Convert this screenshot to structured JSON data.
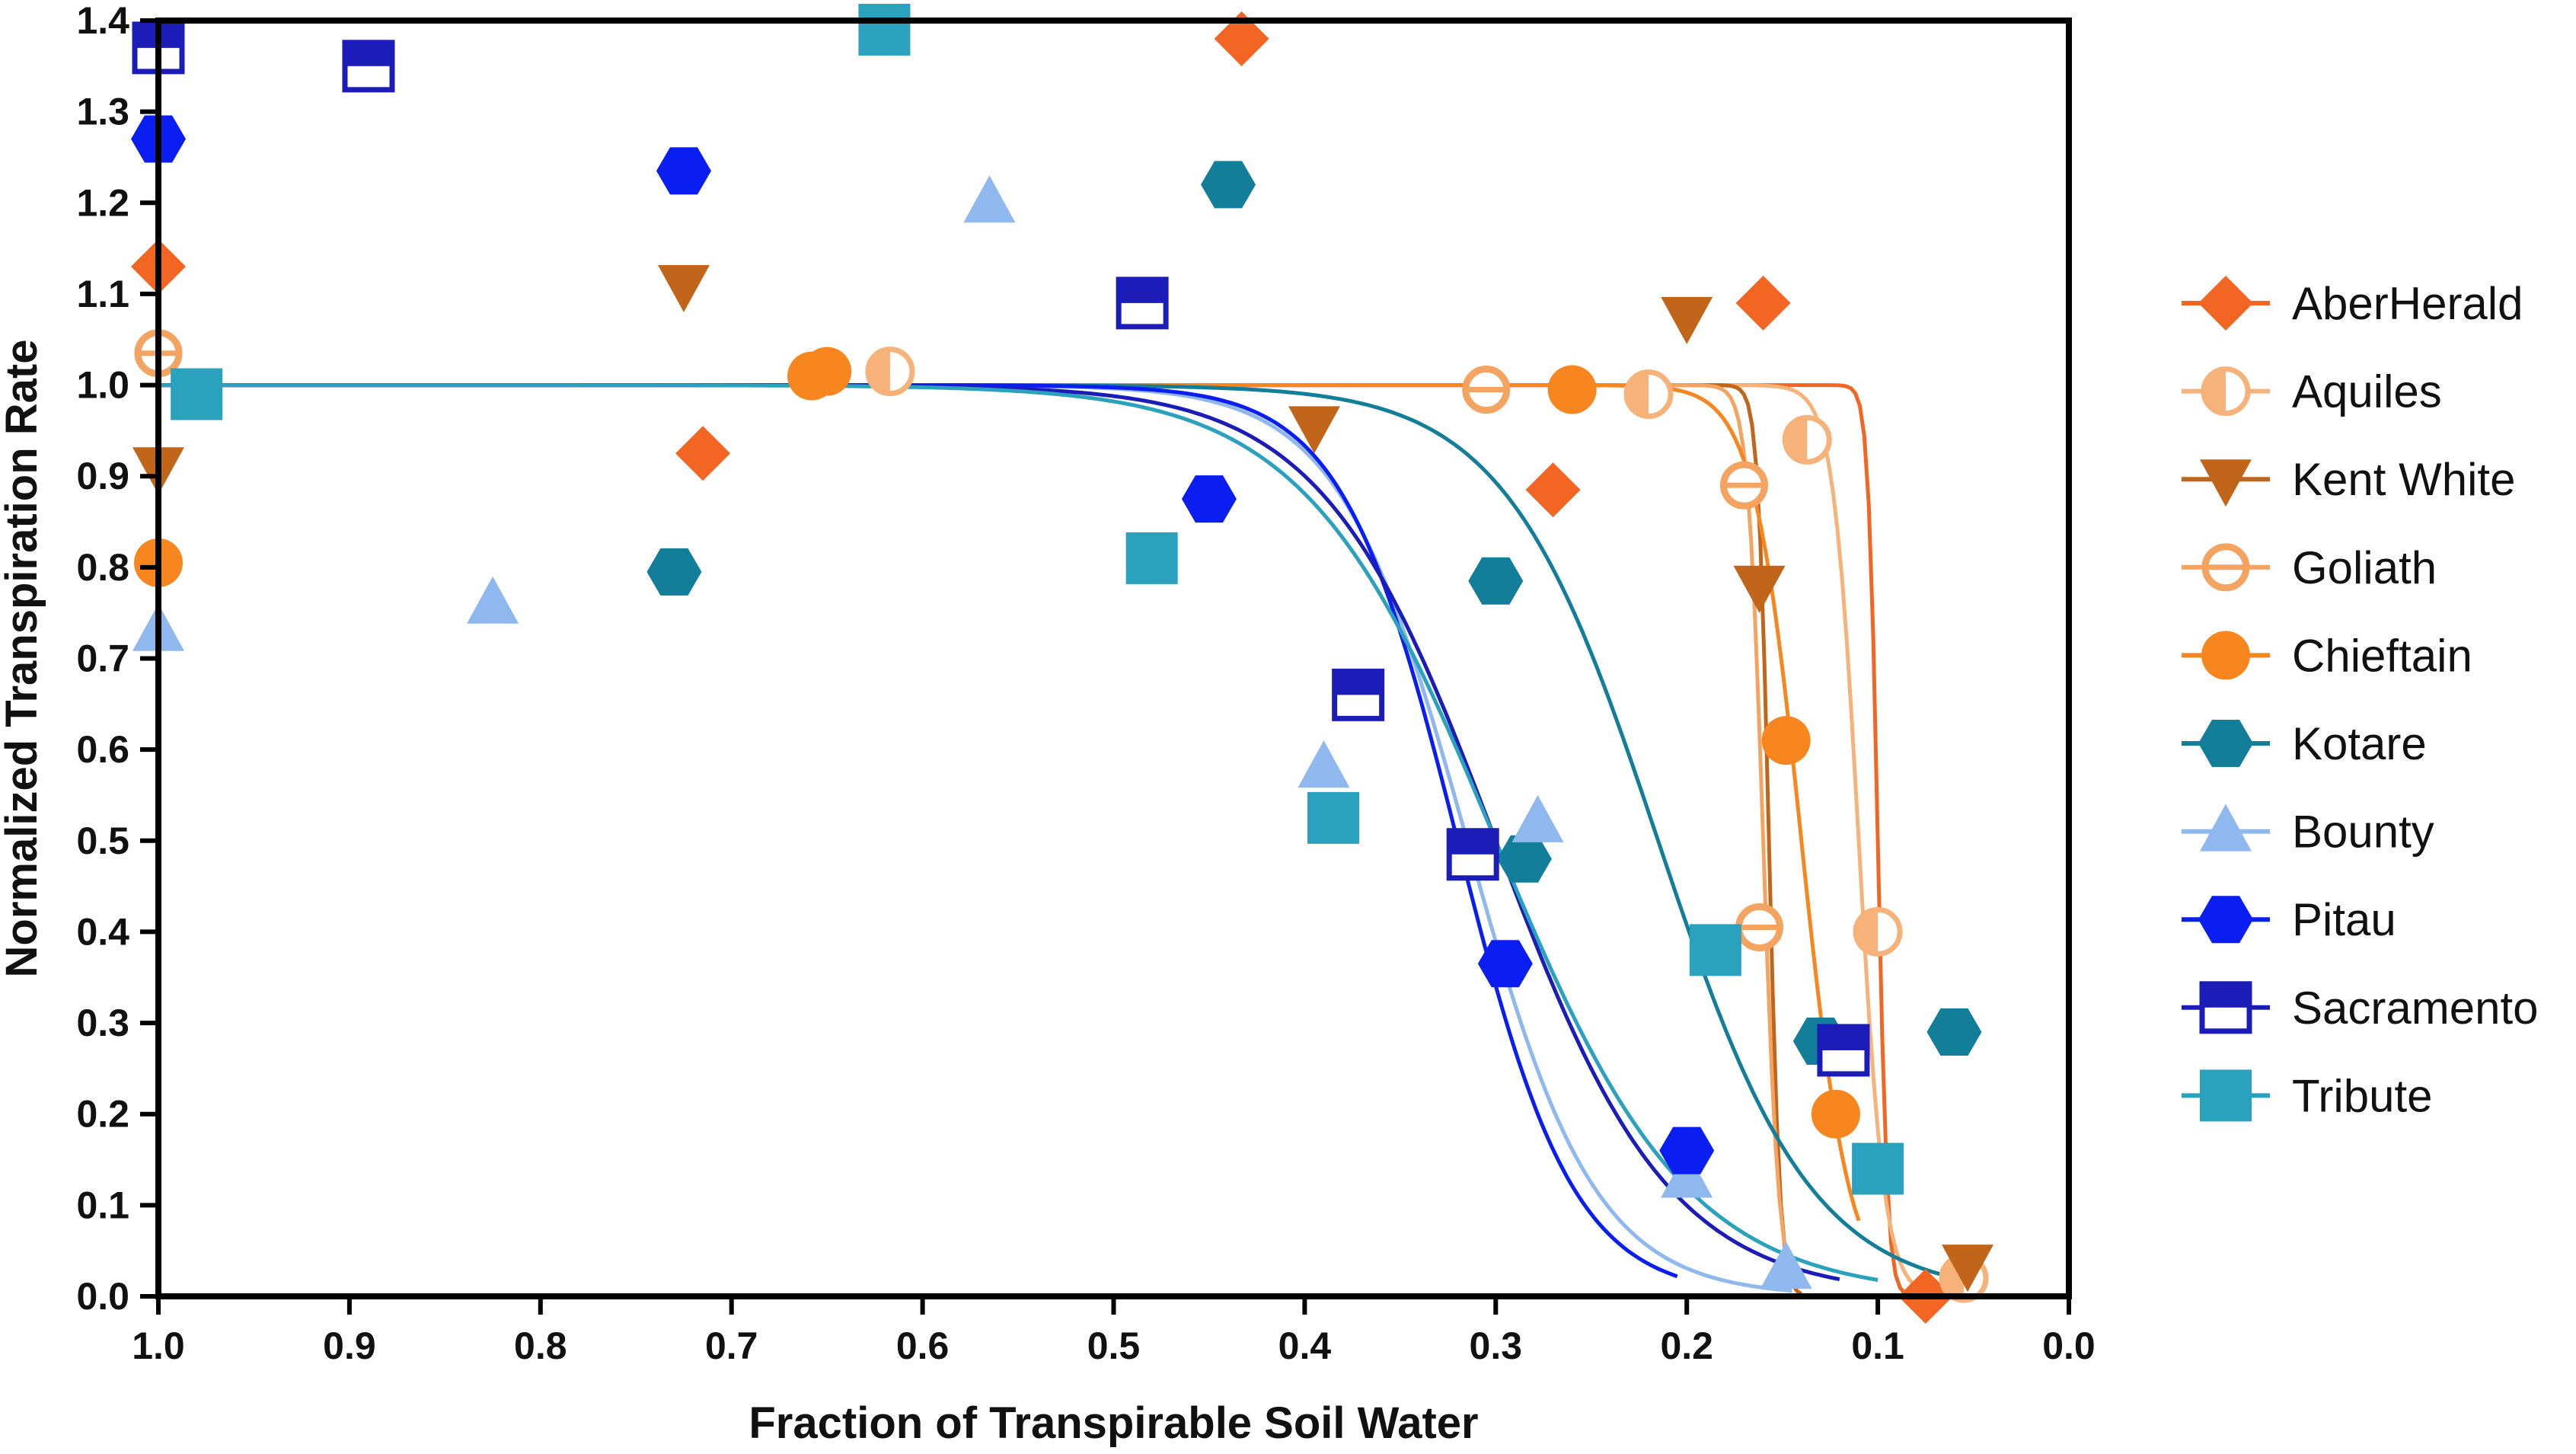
{
  "chart_data": {
    "type": "scatter",
    "title": "",
    "xlabel": "Fraction of Transpirable Soil Water",
    "ylabel": "Normalized Transpiration Rate",
    "xlim": [
      1.0,
      0.0
    ],
    "ylim": [
      0.0,
      1.4
    ],
    "x_reversed": true,
    "x_ticks": [
      "1.0",
      "0.9",
      "0.8",
      "0.7",
      "0.6",
      "0.5",
      "0.4",
      "0.3",
      "0.2",
      "0.1",
      "0.0"
    ],
    "y_ticks": [
      "0.0",
      "0.1",
      "0.2",
      "0.3",
      "0.4",
      "0.5",
      "0.6",
      "0.7",
      "0.8",
      "0.9",
      "1.0",
      "1.1",
      "1.2",
      "1.3",
      "1.4"
    ],
    "grid": false,
    "legend_position": "right",
    "series": [
      {
        "name": "AberHerald",
        "marker": "diamond",
        "color": "#F26522",
        "fit": {
          "threshold": 0.1,
          "slope": 400,
          "x_from": 1.0,
          "x_to": 0.065
        },
        "points": [
          [
            1.0,
            1.13
          ],
          [
            0.715,
            0.925
          ],
          [
            0.433,
            1.38
          ],
          [
            0.27,
            0.885
          ],
          [
            0.16,
            1.09
          ],
          [
            0.075,
            0.0
          ]
        ]
      },
      {
        "name": "Aquiles",
        "marker": "circle-half",
        "color": "#F7B27A",
        "fit": {
          "threshold": 0.11,
          "slope": 150,
          "x_from": 1.0,
          "x_to": 0.055
        },
        "points": [
          [
            0.617,
            1.015
          ],
          [
            0.22,
            0.99
          ],
          [
            0.137,
            0.94
          ],
          [
            0.1,
            0.4
          ],
          [
            0.055,
            0.02
          ]
        ]
      },
      {
        "name": "Kent White",
        "marker": "triangle-down",
        "color": "#C1651B",
        "fit": {
          "threshold": 0.157,
          "slope": 350,
          "x_from": 1.0,
          "x_to": 0.14
        },
        "points": [
          [
            1.0,
            0.91
          ],
          [
            0.725,
            1.11
          ],
          [
            0.395,
            0.955
          ],
          [
            0.2,
            1.075
          ],
          [
            0.162,
            0.78
          ],
          [
            0.053,
            0.035
          ]
        ]
      },
      {
        "name": "Goliath",
        "marker": "circle-bar",
        "color": "#F4A460",
        "fit": {
          "threshold": 0.16,
          "slope": 250,
          "x_from": 1.0,
          "x_to": 0.145
        },
        "points": [
          [
            1.0,
            1.035
          ],
          [
            0.305,
            0.995
          ],
          [
            0.17,
            0.89
          ],
          [
            0.162,
            0.405
          ]
        ]
      },
      {
        "name": "Chieftain",
        "marker": "circle",
        "color": "#F7861E",
        "fit": {
          "threshold": 0.14,
          "slope": 80,
          "x_from": 1.0,
          "x_to": 0.11
        },
        "points": [
          [
            1.0,
            0.805
          ],
          [
            0.658,
            1.01
          ],
          [
            0.65,
            1.015
          ],
          [
            0.26,
            0.995
          ],
          [
            0.148,
            0.61
          ],
          [
            0.122,
            0.2
          ]
        ]
      },
      {
        "name": "Kotare",
        "marker": "hexagon",
        "color": "#137E9A",
        "fit": {
          "threshold": 0.215,
          "slope": 25,
          "x_from": 1.0,
          "x_to": 0.065
        },
        "points": [
          [
            0.44,
            1.22
          ],
          [
            0.73,
            0.795
          ],
          [
            0.3,
            0.785
          ],
          [
            0.285,
            0.48
          ],
          [
            0.13,
            0.28
          ],
          [
            0.06,
            0.29
          ]
        ]
      },
      {
        "name": "Bounty",
        "marker": "triangle-up",
        "color": "#8FB9EE",
        "fit": {
          "threshold": 0.315,
          "slope": 30,
          "x_from": 1.0,
          "x_to": 0.145
        },
        "points": [
          [
            1.0,
            0.73
          ],
          [
            0.825,
            0.76
          ],
          [
            0.565,
            1.2
          ],
          [
            0.39,
            0.58
          ],
          [
            0.278,
            0.52
          ],
          [
            0.2,
            0.13
          ],
          [
            0.148,
            0.03
          ]
        ]
      },
      {
        "name": "Pitau",
        "marker": "hexagon",
        "color": "#0A1EF2",
        "fit": {
          "threshold": 0.32,
          "slope": 33,
          "x_from": 1.0,
          "x_to": 0.205
        },
        "points": [
          [
            1.0,
            1.27
          ],
          [
            0.725,
            1.235
          ],
          [
            0.45,
            0.875
          ],
          [
            0.295,
            0.365
          ],
          [
            0.2,
            0.16
          ]
        ]
      },
      {
        "name": "Sacramento",
        "marker": "square-half",
        "color": "#1C1CB8",
        "fit": {
          "threshold": 0.3,
          "slope": 22,
          "x_from": 1.0,
          "x_to": 0.12
        },
        "points": [
          [
            1.0,
            1.37
          ],
          [
            0.89,
            1.35
          ],
          [
            0.485,
            1.09
          ],
          [
            0.372,
            0.66
          ],
          [
            0.312,
            0.485
          ],
          [
            0.118,
            0.27
          ]
        ]
      },
      {
        "name": "Tribute",
        "marker": "square",
        "color": "#2AA1BD",
        "fit": {
          "threshold": 0.3,
          "slope": 20,
          "x_from": 1.0,
          "x_to": 0.1
        },
        "points": [
          [
            0.62,
            1.39
          ],
          [
            0.98,
            0.99
          ],
          [
            0.48,
            0.81
          ],
          [
            0.385,
            0.525
          ],
          [
            0.185,
            0.38
          ],
          [
            0.1,
            0.14
          ]
        ]
      }
    ]
  }
}
